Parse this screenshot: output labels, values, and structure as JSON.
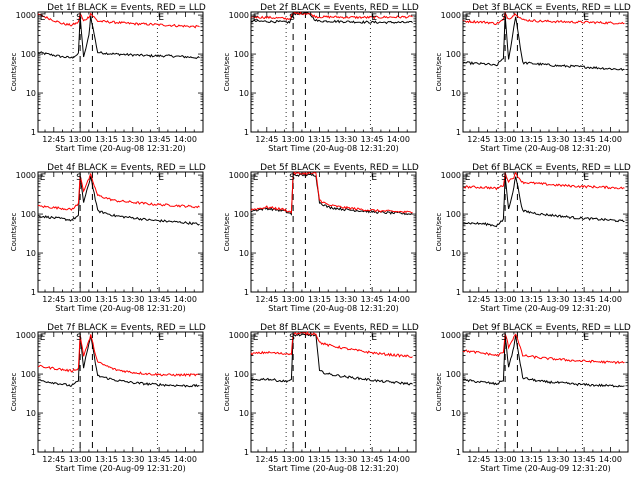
{
  "chart_data": [
    {
      "type": "line",
      "title": "Det 1f BLACK = Events, RED = LLD",
      "xlabel": "Start Time (20-Aug-08 12:31:20)",
      "ylabel": "Counts/sec",
      "ylim": [
        1,
        1200
      ],
      "y_scale": "log",
      "x_range": [
        "12:36",
        "14:10"
      ],
      "x_ticks": [
        "12:45",
        "13:00",
        "13:15",
        "13:30",
        "13:45",
        "14:00"
      ],
      "y_ticks": [
        "1",
        "10",
        "100",
        "1000"
      ],
      "markers": [
        "E",
        "S",
        "E"
      ],
      "series": [
        {
          "color": "#000000",
          "x": [
            "12:36",
            "12:50",
            "12:55",
            "12:59",
            "13:00",
            "13:02",
            "13:05",
            "13:06",
            "13:10",
            "13:20",
            "13:30",
            "13:40",
            "13:50",
            "14:00",
            "14:08"
          ],
          "y": [
            110,
            85,
            80,
            100,
            950,
            80,
            300,
            950,
            110,
            100,
            95,
            90,
            90,
            85,
            80
          ]
        },
        {
          "color": "#ff0000",
          "x": [
            "12:36",
            "12:50",
            "12:55",
            "12:59",
            "13:00",
            "13:02",
            "13:05",
            "13:06",
            "13:10",
            "13:20",
            "13:30",
            "13:40",
            "13:50",
            "14:00",
            "14:08"
          ],
          "y": [
            1050,
            600,
            550,
            650,
            1100,
            700,
            900,
            1100,
            700,
            650,
            600,
            580,
            550,
            520,
            500
          ]
        }
      ]
    },
    {
      "type": "line",
      "title": "Det 2f BLACK = Events, RED = LLD",
      "xlabel": "Start Time (20-Aug-08 12:31:20)",
      "ylabel": "Counts/sec",
      "ylim": [
        1,
        1200
      ],
      "y_scale": "log",
      "x_range": [
        "12:36",
        "14:10"
      ],
      "x_ticks": [
        "12:45",
        "13:00",
        "13:15",
        "13:30",
        "13:45",
        "14:00"
      ],
      "y_ticks": [
        "1",
        "10",
        "100",
        "1000"
      ],
      "markers": [
        "E",
        "S",
        "E"
      ],
      "series": [
        {
          "color": "#000000",
          "x": [
            "12:36",
            "12:50",
            "12:58",
            "13:00",
            "13:05",
            "13:08",
            "13:10",
            "13:12",
            "13:14",
            "13:20",
            "13:30",
            "13:40",
            "13:50",
            "14:00",
            "14:08"
          ],
          "y": [
            700,
            680,
            650,
            1100,
            1100,
            1100,
            1000,
            800,
            700,
            700,
            680,
            660,
            650,
            650,
            640
          ]
        },
        {
          "color": "#ff0000",
          "x": [
            "12:36",
            "12:50",
            "12:58",
            "13:00",
            "13:05",
            "13:08",
            "13:10",
            "13:12",
            "13:14",
            "13:20",
            "13:30",
            "13:40",
            "13:50",
            "14:00",
            "14:08"
          ],
          "y": [
            900,
            850,
            800,
            1100,
            1100,
            1100,
            1050,
            950,
            900,
            900,
            880,
            870,
            880,
            890,
            900
          ]
        }
      ]
    },
    {
      "type": "line",
      "title": "Det 3f BLACK = Events, RED = LLD",
      "xlabel": "Start Time (20-Aug-08 12:31:20)",
      "ylabel": "Counts/sec",
      "ylim": [
        1,
        1200
      ],
      "y_scale": "log",
      "x_range": [
        "12:36",
        "14:10"
      ],
      "x_ticks": [
        "12:45",
        "13:00",
        "13:15",
        "13:30",
        "13:45",
        "14:00"
      ],
      "y_ticks": [
        "1",
        "10",
        "100",
        "1000"
      ],
      "markers": [
        "E",
        "S",
        "E"
      ],
      "series": [
        {
          "color": "#000000",
          "x": [
            "12:36",
            "12:50",
            "12:55",
            "12:59",
            "13:00",
            "13:02",
            "13:05",
            "13:06",
            "13:10",
            "13:20",
            "13:30",
            "13:40",
            "13:50",
            "14:00",
            "14:08"
          ],
          "y": [
            60,
            55,
            50,
            80,
            950,
            70,
            500,
            950,
            60,
            55,
            50,
            48,
            45,
            42,
            40
          ]
        },
        {
          "color": "#ff0000",
          "x": [
            "12:36",
            "12:50",
            "12:55",
            "12:59",
            "13:00",
            "13:02",
            "13:05",
            "13:06",
            "13:10",
            "13:20",
            "13:30",
            "13:40",
            "13:50",
            "14:00",
            "14:08"
          ],
          "y": [
            700,
            650,
            600,
            750,
            1100,
            800,
            1000,
            1100,
            750,
            700,
            680,
            660,
            650,
            630,
            620
          ]
        }
      ]
    },
    {
      "type": "line",
      "title": "Det 4f BLACK = Events, RED = LLD",
      "xlabel": "Start Time (20-Aug-08 12:31:20)",
      "ylabel": "Counts/sec",
      "ylim": [
        1,
        1200
      ],
      "y_scale": "log",
      "x_range": [
        "12:36",
        "14:10"
      ],
      "x_ticks": [
        "12:45",
        "13:00",
        "13:15",
        "13:30",
        "13:45",
        "14:00"
      ],
      "y_ticks": [
        "1",
        "10",
        "100",
        "1000"
      ],
      "markers": [
        "E",
        "S",
        "E"
      ],
      "series": [
        {
          "color": "#000000",
          "x": [
            "12:36",
            "12:50",
            "12:55",
            "12:59",
            "13:00",
            "13:02",
            "13:05",
            "13:06",
            "13:10",
            "13:20",
            "13:30",
            "13:40",
            "13:50",
            "14:00",
            "14:08"
          ],
          "y": [
            90,
            75,
            70,
            90,
            950,
            200,
            600,
            950,
            120,
            90,
            80,
            70,
            65,
            60,
            55
          ]
        },
        {
          "color": "#ff0000",
          "x": [
            "12:36",
            "12:50",
            "12:55",
            "12:59",
            "13:00",
            "13:02",
            "13:05",
            "13:06",
            "13:10",
            "13:20",
            "13:30",
            "13:40",
            "13:50",
            "14:00",
            "14:08"
          ],
          "y": [
            160,
            140,
            130,
            180,
            1000,
            400,
            800,
            1000,
            300,
            220,
            200,
            180,
            170,
            160,
            150
          ]
        }
      ]
    },
    {
      "type": "line",
      "title": "Det 5f BLACK = Events, RED = LLD",
      "xlabel": "Start Time (20-Aug-08 12:31:20)",
      "ylabel": "Counts/sec",
      "ylim": [
        1,
        1200
      ],
      "y_scale": "log",
      "x_range": [
        "12:36",
        "14:10"
      ],
      "x_ticks": [
        "12:45",
        "13:00",
        "13:15",
        "13:30",
        "13:45",
        "14:00"
      ],
      "y_ticks": [
        "1",
        "10",
        "100",
        "1000"
      ],
      "markers": [
        "E",
        "S",
        "E"
      ],
      "series": [
        {
          "color": "#000000",
          "x": [
            "12:36",
            "12:45",
            "12:55",
            "12:59",
            "13:00",
            "13:05",
            "13:10",
            "13:13",
            "13:15",
            "13:20",
            "13:30",
            "13:40",
            "13:50",
            "14:00",
            "14:08"
          ],
          "y": [
            120,
            140,
            120,
            100,
            1000,
            1000,
            1000,
            1000,
            200,
            150,
            130,
            120,
            110,
            105,
            100
          ]
        },
        {
          "color": "#ff0000",
          "x": [
            "12:36",
            "12:45",
            "12:55",
            "12:59",
            "13:00",
            "13:05",
            "13:10",
            "13:13",
            "13:15",
            "13:20",
            "13:30",
            "13:40",
            "13:50",
            "14:00",
            "14:08"
          ],
          "y": [
            130,
            150,
            130,
            110,
            1100,
            1100,
            1100,
            1100,
            230,
            170,
            145,
            130,
            120,
            115,
            110
          ]
        }
      ]
    },
    {
      "type": "line",
      "title": "Det 6f BLACK = Events, RED = LLD",
      "xlabel": "Start Time (20-Aug-09 12:31:20)",
      "ylabel": "Counts/sec",
      "ylim": [
        1,
        1200
      ],
      "y_scale": "log",
      "x_range": [
        "12:36",
        "14:10"
      ],
      "x_ticks": [
        "12:45",
        "13:00",
        "13:15",
        "13:30",
        "13:45",
        "14:00"
      ],
      "y_ticks": [
        "1",
        "10",
        "100",
        "1000"
      ],
      "markers": [
        "E",
        "S",
        "E"
      ],
      "series": [
        {
          "color": "#000000",
          "x": [
            "12:36",
            "12:50",
            "12:55",
            "12:59",
            "13:00",
            "13:02",
            "13:05",
            "13:06",
            "13:10",
            "13:20",
            "13:30",
            "13:40",
            "13:50",
            "14:00",
            "14:08"
          ],
          "y": [
            60,
            55,
            50,
            70,
            950,
            130,
            500,
            950,
            120,
            100,
            90,
            80,
            75,
            70,
            65
          ]
        },
        {
          "color": "#ff0000",
          "x": [
            "12:36",
            "12:50",
            "12:55",
            "12:59",
            "13:00",
            "13:02",
            "13:05",
            "13:06",
            "13:10",
            "13:20",
            "13:30",
            "13:40",
            "13:50",
            "14:00",
            "14:08"
          ],
          "y": [
            500,
            480,
            450,
            550,
            1100,
            700,
            900,
            1100,
            650,
            600,
            550,
            520,
            500,
            480,
            460
          ]
        }
      ]
    },
    {
      "type": "line",
      "title": "Det 7f BLACK = Events, RED = LLD",
      "xlabel": "Start Time (20-Aug-09 12:31:20)",
      "ylabel": "Counts/sec",
      "ylim": [
        1,
        1200
      ],
      "y_scale": "log",
      "x_range": [
        "12:36",
        "14:10"
      ],
      "x_ticks": [
        "12:45",
        "13:00",
        "13:15",
        "13:30",
        "13:45",
        "14:00"
      ],
      "y_ticks": [
        "1",
        "10",
        "100",
        "1000"
      ],
      "markers": [
        "E",
        "S",
        "E"
      ],
      "series": [
        {
          "color": "#000000",
          "x": [
            "12:36",
            "12:50",
            "12:55",
            "12:59",
            "13:00",
            "13:02",
            "13:05",
            "13:06",
            "13:10",
            "13:20",
            "13:30",
            "13:40",
            "13:50",
            "14:00",
            "14:08"
          ],
          "y": [
            70,
            55,
            50,
            65,
            950,
            150,
            600,
            950,
            90,
            70,
            60,
            55,
            52,
            50,
            50
          ]
        },
        {
          "color": "#ff0000",
          "x": [
            "12:36",
            "12:50",
            "12:55",
            "12:59",
            "13:00",
            "13:02",
            "13:05",
            "13:06",
            "13:10",
            "13:20",
            "13:30",
            "13:40",
            "13:50",
            "14:00",
            "14:08"
          ],
          "y": [
            160,
            130,
            120,
            140,
            1000,
            300,
            700,
            1000,
            200,
            130,
            110,
            100,
            95,
            95,
            95
          ]
        }
      ]
    },
    {
      "type": "line",
      "title": "Det 8f BLACK = Events, RED = LLD",
      "xlabel": "Start Time (20-Aug-08 12:31:20)",
      "ylabel": "Counts/sec",
      "ylim": [
        1,
        1200
      ],
      "y_scale": "log",
      "x_range": [
        "12:36",
        "14:10"
      ],
      "x_ticks": [
        "12:45",
        "13:00",
        "13:15",
        "13:30",
        "13:45",
        "14:00"
      ],
      "y_ticks": [
        "1",
        "10",
        "100",
        "1000"
      ],
      "markers": [
        "E",
        "S",
        "E"
      ],
      "series": [
        {
          "color": "#000000",
          "x": [
            "12:36",
            "12:45",
            "12:55",
            "12:59",
            "13:00",
            "13:05",
            "13:10",
            "13:13",
            "13:15",
            "13:20",
            "13:30",
            "13:40",
            "13:50",
            "14:00",
            "14:08"
          ],
          "y": [
            70,
            75,
            65,
            70,
            1000,
            1000,
            1000,
            1000,
            120,
            100,
            85,
            75,
            65,
            60,
            55
          ]
        },
        {
          "color": "#ff0000",
          "x": [
            "12:36",
            "12:45",
            "12:55",
            "12:59",
            "13:00",
            "13:05",
            "13:10",
            "13:13",
            "13:15",
            "13:20",
            "13:30",
            "13:40",
            "13:50",
            "14:00",
            "14:08"
          ],
          "y": [
            330,
            360,
            330,
            340,
            1100,
            1100,
            1100,
            1100,
            650,
            550,
            450,
            380,
            330,
            300,
            280
          ]
        }
      ]
    },
    {
      "type": "line",
      "title": "Det 9f BLACK = Events, RED = LLD",
      "xlabel": "Start Time (20-Aug-09 12:31:20)",
      "ylabel": "Counts/sec",
      "ylim": [
        1,
        1200
      ],
      "y_scale": "log",
      "x_range": [
        "12:36",
        "14:10"
      ],
      "x_ticks": [
        "12:45",
        "13:00",
        "13:15",
        "13:30",
        "13:45",
        "14:00"
      ],
      "y_ticks": [
        "1",
        "10",
        "100",
        "1000"
      ],
      "markers": [
        "E",
        "S",
        "E"
      ],
      "series": [
        {
          "color": "#000000",
          "x": [
            "12:36",
            "12:50",
            "12:55",
            "12:59",
            "13:00",
            "13:02",
            "13:05",
            "13:06",
            "13:10",
            "13:20",
            "13:30",
            "13:40",
            "13:50",
            "14:00",
            "14:08"
          ],
          "y": [
            70,
            60,
            55,
            70,
            950,
            150,
            500,
            950,
            80,
            65,
            60,
            55,
            52,
            50,
            50
          ]
        },
        {
          "color": "#ff0000",
          "x": [
            "12:36",
            "12:50",
            "12:55",
            "12:59",
            "13:00",
            "13:02",
            "13:05",
            "13:06",
            "13:10",
            "13:20",
            "13:30",
            "13:40",
            "13:50",
            "14:00",
            "14:08"
          ],
          "y": [
            400,
            330,
            300,
            350,
            1100,
            500,
            900,
            1100,
            300,
            260,
            240,
            220,
            210,
            200,
            200
          ]
        }
      ]
    }
  ]
}
